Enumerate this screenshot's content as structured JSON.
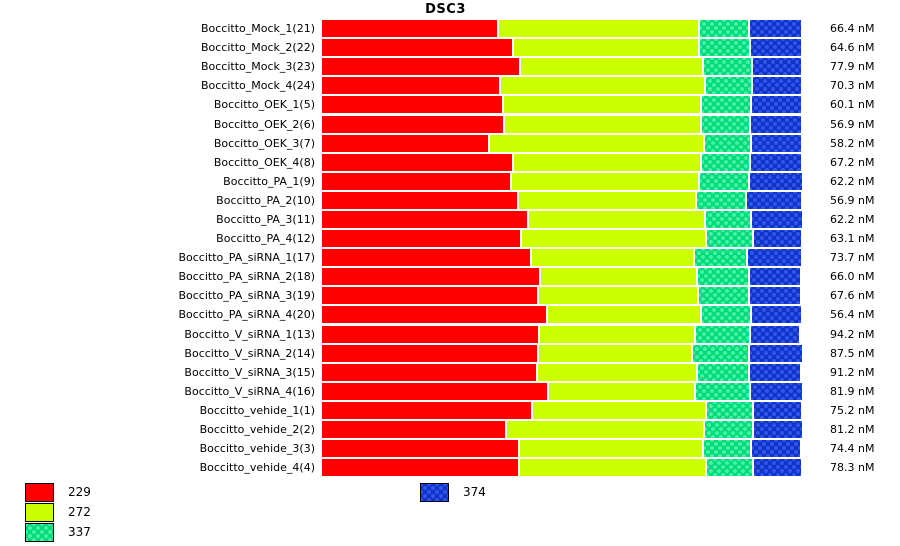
{
  "title": "DSC3",
  "colors": {
    "series_229": "#ff0000",
    "series_272": "#ccff00",
    "series_337": "#00dc7c",
    "series_337_dots": "#47efa2",
    "series_374": "#1233cb",
    "series_374_dots": "#2e57ea",
    "background": "#ffffff",
    "text": "#000000"
  },
  "legend": {
    "items": [
      {
        "label": "229",
        "color": "#ff0000",
        "pattern": "solid"
      },
      {
        "label": "272",
        "color": "#ccff00",
        "pattern": "solid"
      },
      {
        "label": "337",
        "color": "#00dc7c",
        "pattern": "dots"
      },
      {
        "label": "374",
        "color": "#1233cb",
        "pattern": "dots"
      }
    ]
  },
  "chart_data": {
    "type": "bar",
    "orientation": "horizontal",
    "stacked": true,
    "title": "DSC3",
    "unit": "nM",
    "legend_position": "bottom",
    "series_labels": [
      "229",
      "272",
      "337",
      "374"
    ],
    "segment_unit": "px (of 480px full-width stacked bar)",
    "rows": [
      {
        "label": "Boccitto_Mock_1(21)",
        "value_nM": 66.4,
        "value_label": "66.4 nM",
        "segments": [
          175,
          201,
          50,
          53
        ]
      },
      {
        "label": "Boccitto_Mock_2(22)",
        "value_nM": 64.6,
        "value_label": "64.6 nM",
        "segments": [
          190,
          186,
          51,
          52
        ]
      },
      {
        "label": "Boccitto_Mock_3(23)",
        "value_nM": 77.9,
        "value_label": "77.9 nM",
        "segments": [
          197,
          183,
          49,
          50
        ]
      },
      {
        "label": "Boccitto_Mock_4(24)",
        "value_nM": 70.3,
        "value_label": "70.3 nM",
        "segments": [
          177,
          205,
          47,
          50
        ]
      },
      {
        "label": "Boccitto_OEK_1(5)",
        "value_nM": 60.1,
        "value_label": "60.1 nM",
        "segments": [
          180,
          198,
          50,
          51
        ]
      },
      {
        "label": "Boccitto_OEK_2(6)",
        "value_nM": 56.9,
        "value_label": "56.9 nM",
        "segments": [
          181,
          197,
          49,
          52
        ]
      },
      {
        "label": "Boccitto_OEK_3(7)",
        "value_nM": 58.2,
        "value_label": "58.2 nM",
        "segments": [
          166,
          215,
          47,
          51
        ]
      },
      {
        "label": "Boccitto_OEK_4(8)",
        "value_nM": 67.2,
        "value_label": "67.2 nM",
        "segments": [
          190,
          188,
          49,
          52
        ]
      },
      {
        "label": "Boccitto_PA_1(9)",
        "value_nM": 62.2,
        "value_label": "62.2 nM",
        "segments": [
          188,
          188,
          50,
          54
        ]
      },
      {
        "label": "Boccitto_PA_2(10)",
        "value_nM": 56.9,
        "value_label": "56.9 nM",
        "segments": [
          195,
          178,
          50,
          56
        ]
      },
      {
        "label": "Boccitto_PA_3(11)",
        "value_nM": 62.2,
        "value_label": "62.2 nM",
        "segments": [
          205,
          177,
          46,
          52
        ]
      },
      {
        "label": "Boccitto_PA_4(12)",
        "value_nM": 63.1,
        "value_label": "63.1 nM",
        "segments": [
          198,
          185,
          47,
          49
        ]
      },
      {
        "label": "Boccitto_PA_siRNA_1(17)",
        "value_nM": 73.7,
        "value_label": "73.7 nM",
        "segments": [
          208,
          163,
          53,
          55
        ]
      },
      {
        "label": "Boccitto_PA_siRNA_2(18)",
        "value_nM": 66.0,
        "value_label": "66.0 nM",
        "segments": [
          217,
          157,
          52,
          52
        ]
      },
      {
        "label": "Boccitto_PA_siRNA_3(19)",
        "value_nM": 67.6,
        "value_label": "67.6 nM",
        "segments": [
          215,
          160,
          51,
          52
        ]
      },
      {
        "label": "Boccitto_PA_siRNA_4(20)",
        "value_nM": 56.4,
        "value_label": "56.4 nM",
        "segments": [
          224,
          154,
          50,
          51
        ]
      },
      {
        "label": "Boccitto_V_siRNA_1(13)",
        "value_nM": 94.2,
        "value_label": "94.2 nM",
        "segments": [
          216,
          156,
          55,
          50
        ]
      },
      {
        "label": "Boccitto_V_siRNA_2(14)",
        "value_nM": 87.5,
        "value_label": "87.5 nM",
        "segments": [
          215,
          154,
          57,
          54
        ]
      },
      {
        "label": "Boccitto_V_siRNA_3(15)",
        "value_nM": 91.2,
        "value_label": "91.2 nM",
        "segments": [
          214,
          160,
          52,
          52
        ]
      },
      {
        "label": "Boccitto_V_siRNA_4(16)",
        "value_nM": 81.9,
        "value_label": "81.9 nM",
        "segments": [
          225,
          147,
          55,
          53
        ]
      },
      {
        "label": "Boccitto_vehide_1(1)",
        "value_nM": 75.2,
        "value_label": "75.2 nM",
        "segments": [
          209,
          174,
          47,
          49
        ]
      },
      {
        "label": "Boccitto_vehide_2(2)",
        "value_nM": 81.2,
        "value_label": "81.2 nM",
        "segments": [
          183,
          198,
          49,
          50
        ]
      },
      {
        "label": "Boccitto_vehide_3(3)",
        "value_nM": 74.4,
        "value_label": "74.4 nM",
        "segments": [
          196,
          184,
          48,
          50
        ]
      },
      {
        "label": "Boccitto_vehide_4(4)",
        "value_nM": 78.3,
        "value_label": "78.3 nM",
        "segments": [
          196,
          187,
          47,
          49
        ]
      }
    ]
  }
}
